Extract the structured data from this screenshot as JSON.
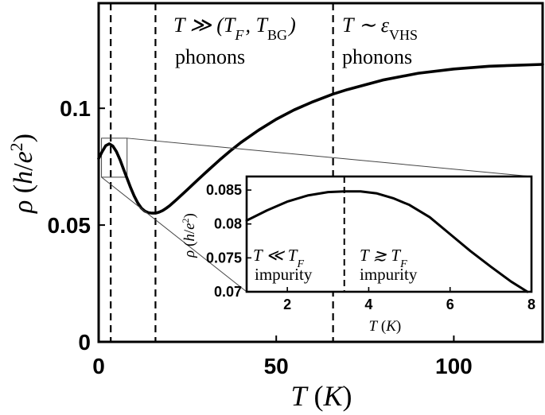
{
  "chart_data": [
    {
      "type": "line",
      "name": "main",
      "xlabel": "T (K)",
      "ylabel": "ρ (h/e²)",
      "xlim": [
        0,
        125
      ],
      "ylim": [
        0,
        0.145
      ],
      "xticks": [
        0,
        50,
        100
      ],
      "xtick_labels": [
        "0",
        "50",
        "100"
      ],
      "yticks": [
        0,
        0.05,
        0.1
      ],
      "ytick_labels": [
        "0",
        "0.05",
        "0.1"
      ],
      "grid": false,
      "series": [
        {
          "x": [
            0,
            1,
            2,
            3,
            4,
            5,
            6,
            7,
            8,
            9,
            10,
            11,
            12,
            13,
            14,
            15,
            16,
            17,
            18,
            19,
            20,
            22,
            25,
            28,
            31,
            34,
            37,
            40,
            45,
            50,
            55,
            60,
            66,
            70,
            80,
            90,
            100,
            110,
            125
          ],
          "y": [
            0.0785,
            0.0815,
            0.084,
            0.0848,
            0.0838,
            0.0815,
            0.078,
            0.074,
            0.07,
            0.066,
            0.0625,
            0.0595,
            0.0573,
            0.056,
            0.0553,
            0.0551,
            0.0551,
            0.0555,
            0.0562,
            0.0572,
            0.0583,
            0.061,
            0.0652,
            0.0695,
            0.0737,
            0.0778,
            0.0817,
            0.0853,
            0.0906,
            0.0953,
            0.0993,
            0.1026,
            0.1061,
            0.108,
            0.1121,
            0.115,
            0.1168,
            0.118,
            0.1188
          ]
        }
      ],
      "vlines": [
        3.4,
        16,
        66
      ],
      "inset_box": {
        "x": [
          0.8,
          8.0
        ],
        "y": [
          0.0705,
          0.0872
        ]
      },
      "annotations": [
        {
          "line1": "T ≫ (T_F, T_BG)",
          "line2": "phonons"
        },
        {
          "line1": "T ∼ ε_VHS",
          "line2": "phonons"
        }
      ]
    },
    {
      "type": "line",
      "name": "inset",
      "xlabel": "T (K)",
      "ylabel": "ρ (h/e²)",
      "xlim": [
        1,
        8
      ],
      "ylim": [
        0.07,
        0.087
      ],
      "xticks": [
        2,
        4,
        6,
        8
      ],
      "xtick_labels": [
        "2",
        "4",
        "6",
        "8"
      ],
      "yticks": [
        0.07,
        0.075,
        0.08,
        0.085
      ],
      "ytick_labels": [
        "0.07",
        "0.075",
        "0.08",
        "0.085"
      ],
      "grid": false,
      "series": [
        {
          "x": [
            1.0,
            1.5,
            2.0,
            2.5,
            3.0,
            3.4,
            3.8,
            4.2,
            4.6,
            5.0,
            5.5,
            6.0,
            6.5,
            7.0,
            7.5,
            7.9
          ],
          "y": [
            0.0805,
            0.082,
            0.0833,
            0.0842,
            0.0847,
            0.0848,
            0.0848,
            0.0845,
            0.0838,
            0.0828,
            0.081,
            0.0785,
            0.076,
            0.0737,
            0.0715,
            0.07
          ]
        }
      ],
      "vlines": [
        3.4
      ],
      "annotations": [
        {
          "line1": "T ≪ T_F",
          "line2": "impurity"
        },
        {
          "line1": "T ≳ T_F",
          "line2": "impurity"
        }
      ]
    }
  ]
}
